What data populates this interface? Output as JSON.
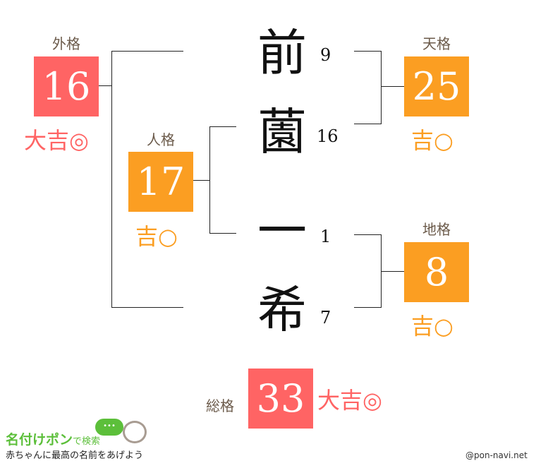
{
  "colors": {
    "daikichi": "#ff6464",
    "kichi": "#fb9e22",
    "label": "#6b5a4a",
    "logo_green": "#5cbf3a"
  },
  "name_chars": [
    {
      "char": "前",
      "strokes": "9"
    },
    {
      "char": "薗",
      "strokes": "16"
    },
    {
      "char": "一",
      "strokes": "1"
    },
    {
      "char": "希",
      "strokes": "7"
    }
  ],
  "gaikaku": {
    "label": "外格",
    "value": "16",
    "fortune": "大吉◎"
  },
  "jinkaku": {
    "label": "人格",
    "value": "17",
    "fortune": "吉○"
  },
  "tenkaku": {
    "label": "天格",
    "value": "25",
    "fortune": "吉○"
  },
  "chikaku": {
    "label": "地格",
    "value": "8",
    "fortune": "吉○"
  },
  "soukaku": {
    "label": "総格",
    "value": "33",
    "fortune": "大吉◎"
  },
  "footer": {
    "logo_main": "名付けポン",
    "logo_sub": "で検索",
    "tagline": "赤ちゃんに最高の名前をあげよう",
    "bubble": "•••",
    "credit": "@pon-navi.net"
  }
}
